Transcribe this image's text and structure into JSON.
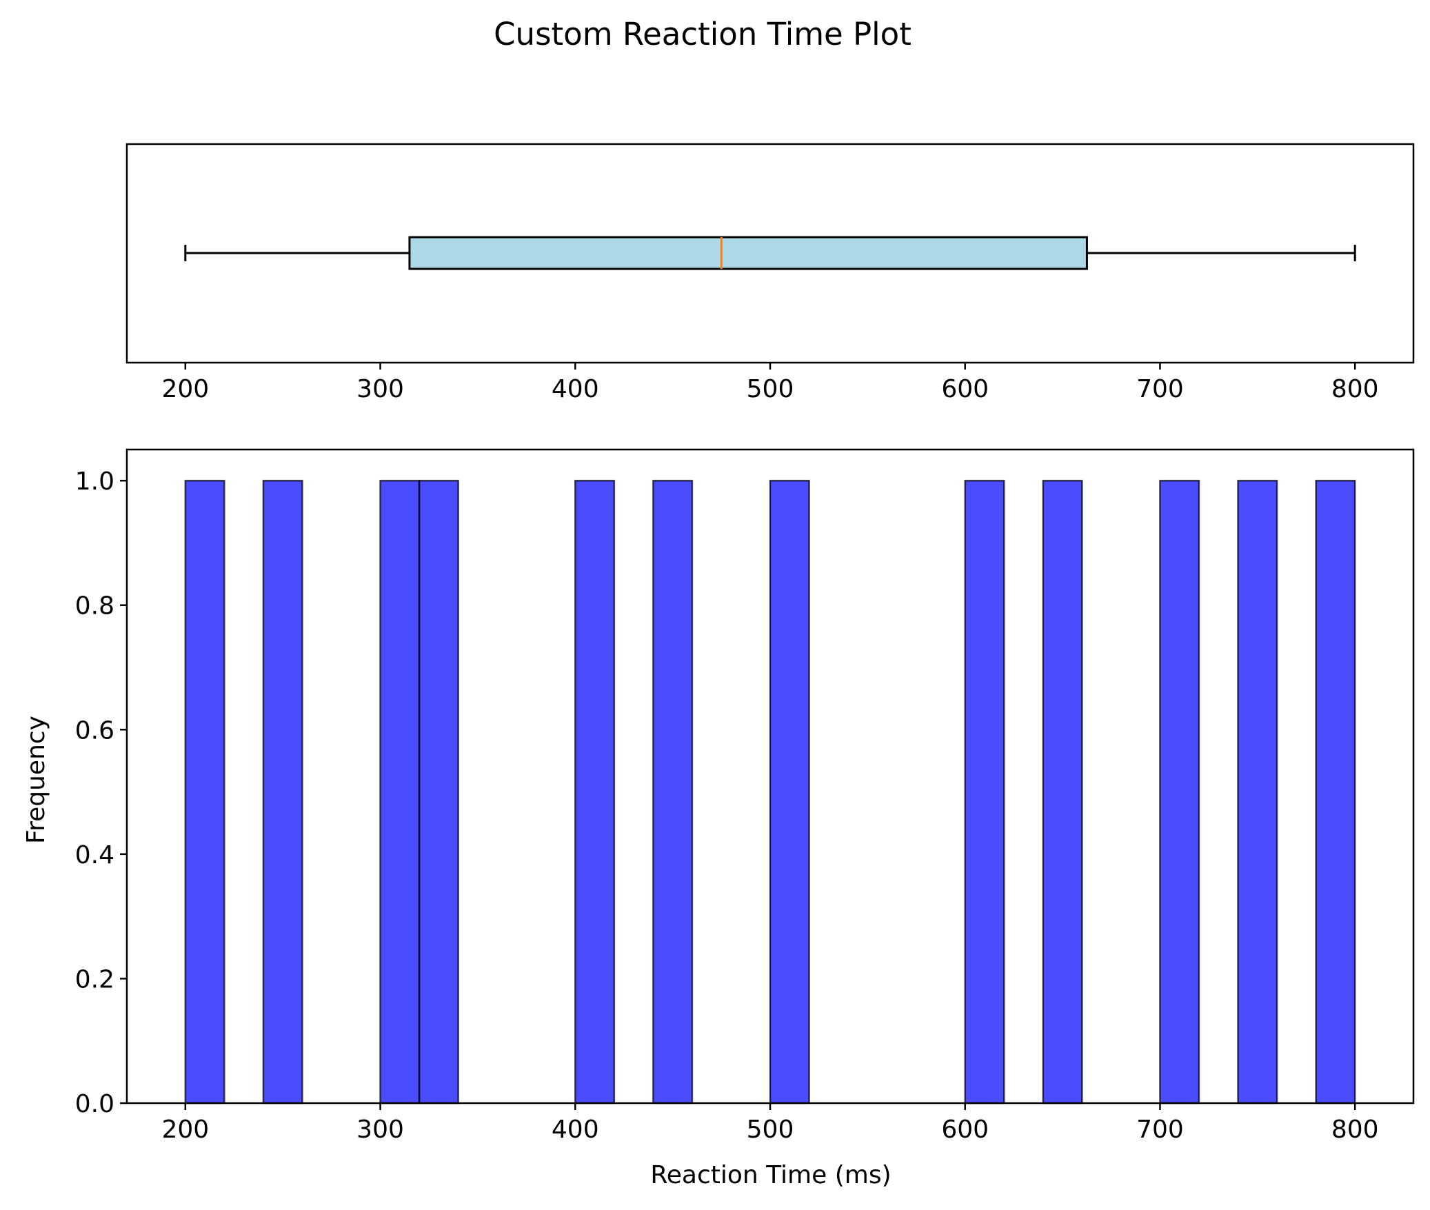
{
  "chart_data": {
    "title": "Custom Reaction Time Plot",
    "colors": {
      "box_fill": "#add8e6",
      "median": "#ff7f0e",
      "hist_fill": "#0000ff",
      "hist_alpha": 0.7,
      "edge": "#000000"
    },
    "panels": [
      {
        "type": "box",
        "orientation": "horizontal",
        "whisker_low": 200,
        "q1": 315,
        "median": 475,
        "q3": 662.5,
        "whisker_high": 800,
        "xlim": [
          170,
          830
        ],
        "xticks": [
          200,
          300,
          400,
          500,
          600,
          700,
          800
        ],
        "xtick_labels": [
          "200",
          "300",
          "400",
          "500",
          "600",
          "700",
          "800"
        ]
      },
      {
        "type": "bar",
        "subtype": "histogram",
        "bin_width": 20,
        "bins": [
          {
            "start": 200,
            "end": 220,
            "count": 1
          },
          {
            "start": 240,
            "end": 260,
            "count": 1
          },
          {
            "start": 300,
            "end": 320,
            "count": 1
          },
          {
            "start": 320,
            "end": 340,
            "count": 1
          },
          {
            "start": 400,
            "end": 420,
            "count": 1
          },
          {
            "start": 440,
            "end": 460,
            "count": 1
          },
          {
            "start": 500,
            "end": 520,
            "count": 1
          },
          {
            "start": 600,
            "end": 620,
            "count": 1
          },
          {
            "start": 640,
            "end": 660,
            "count": 1
          },
          {
            "start": 700,
            "end": 720,
            "count": 1
          },
          {
            "start": 740,
            "end": 760,
            "count": 1
          },
          {
            "start": 780,
            "end": 800,
            "count": 1
          }
        ],
        "xlabel": "Reaction Time (ms)",
        "ylabel": "Frequency",
        "xlim": [
          170,
          830
        ],
        "ylim": [
          0,
          1.05
        ],
        "xticks": [
          200,
          300,
          400,
          500,
          600,
          700,
          800
        ],
        "xtick_labels": [
          "200",
          "300",
          "400",
          "500",
          "600",
          "700",
          "800"
        ],
        "yticks": [
          0,
          0.2,
          0.4,
          0.6,
          0.8,
          1.0
        ],
        "ytick_labels": [
          "0.0",
          "0.2",
          "0.4",
          "0.6",
          "0.8",
          "1.0"
        ],
        "grid": false
      }
    ]
  }
}
